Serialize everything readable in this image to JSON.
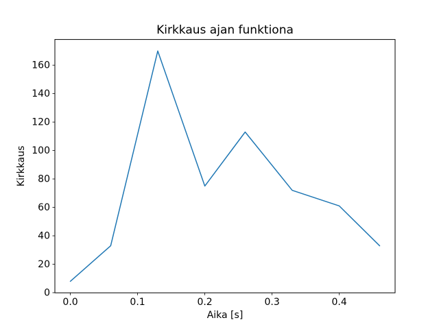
{
  "chart_data": {
    "type": "line",
    "title": "Kirkkaus ajan funktiona",
    "xlabel": "Aika [s]",
    "ylabel": "Kirkkaus",
    "x": [
      0.0,
      0.06,
      0.13,
      0.2,
      0.26,
      0.33,
      0.4,
      0.46
    ],
    "y": [
      8,
      33,
      170,
      75,
      113,
      72,
      61,
      33
    ],
    "xlim": [
      -0.023,
      0.483
    ],
    "ylim": [
      -0.1,
      178.1
    ],
    "xticks": [
      0.0,
      0.1,
      0.2,
      0.3,
      0.4
    ],
    "xtick_labels": [
      "0.0",
      "0.1",
      "0.2",
      "0.3",
      "0.4"
    ],
    "yticks": [
      0,
      20,
      40,
      60,
      80,
      100,
      120,
      140,
      160
    ],
    "ytick_labels": [
      "0",
      "20",
      "40",
      "60",
      "80",
      "100",
      "120",
      "140",
      "160"
    ],
    "line_color": "#1f77b4",
    "line_width": 1.5,
    "spine_color": "#000000",
    "background": "#ffffff",
    "grid": false,
    "legend": null,
    "markers": false
  }
}
